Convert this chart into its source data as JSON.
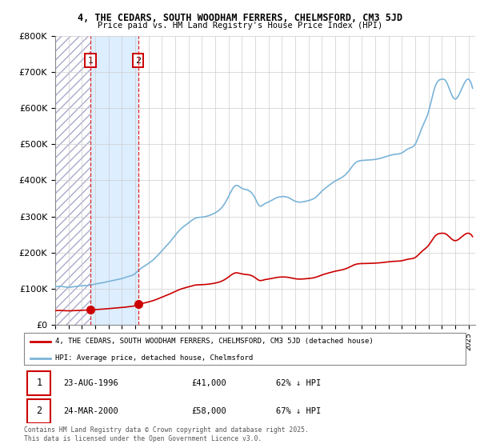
{
  "title1": "4, THE CEDARS, SOUTH WOODHAM FERRERS, CHELMSFORD, CM3 5JD",
  "title2": "Price paid vs. HM Land Registry's House Price Index (HPI)",
  "ylim": [
    0,
    800000
  ],
  "yticks": [
    0,
    100000,
    200000,
    300000,
    400000,
    500000,
    600000,
    700000,
    800000
  ],
  "ytick_labels": [
    "£0",
    "£100K",
    "£200K",
    "£300K",
    "£400K",
    "£500K",
    "£600K",
    "£700K",
    "£800K"
  ],
  "sale1_date": 1996.64,
  "sale1_price": 41000,
  "sale1_label": "1",
  "sale2_date": 2000.22,
  "sale2_price": 58000,
  "sale2_label": "2",
  "hpi_color": "#7ab4d8",
  "price_color": "#cc0000",
  "shade_between_color": "#ddeeff",
  "legend1_label": "4, THE CEDARS, SOUTH WOODHAM FERRERS, CHELMSFORD, CM3 5JD (detached house)",
  "legend2_label": "HPI: Average price, detached house, Chelmsford",
  "table_row1": [
    "1",
    "23-AUG-1996",
    "£41,000",
    "62% ↓ HPI"
  ],
  "table_row2": [
    "2",
    "24-MAR-2000",
    "£58,000",
    "67% ↓ HPI"
  ],
  "footnote": "Contains HM Land Registry data © Crown copyright and database right 2025.\nThis data is licensed under the Open Government Licence v3.0.",
  "sale_marker_size": 7,
  "xlim_start": 1994.0,
  "xlim_end": 2025.5
}
